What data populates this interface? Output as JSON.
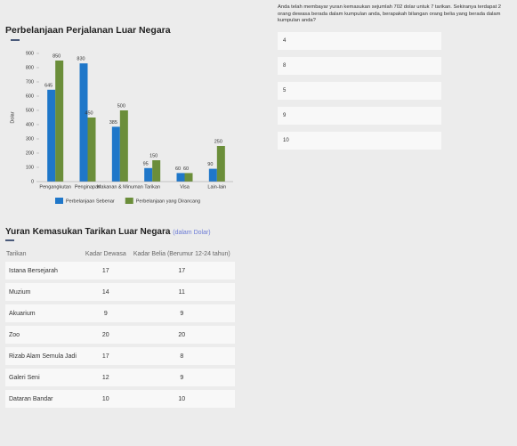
{
  "chart_data": {
    "type": "bar",
    "title": "Perbelanjaan Perjalanan Luar Negara",
    "y_label": "Dolar",
    "categories": [
      "Pengangkutan",
      "Penginapan",
      "Makanan & Minuman",
      "Tarikan",
      "Visa",
      "Lain-lain"
    ],
    "series": [
      {
        "name": "Perbelanjaan Sebenar",
        "color": "#1f77c9",
        "values": [
          645,
          830,
          385,
          95,
          60,
          90
        ]
      },
      {
        "name": "Perbelanjaan yang Dirancang",
        "color": "#6b8e3a",
        "values": [
          850,
          450,
          500,
          150,
          60,
          250
        ]
      }
    ],
    "ylim": [
      0,
      900
    ],
    "yticks": [
      0,
      100,
      200,
      300,
      400,
      500,
      600,
      700,
      800,
      900
    ],
    "grid": false,
    "legend": "bottom"
  },
  "table": {
    "title": "Yuran Kemasukan Tarikan Luar Negara",
    "subtitle": "(dalam Dolar)",
    "headers": [
      "Tarikan",
      "Kadar Dewasa",
      "Kadar Belia (Berumur 12-24 tahun)"
    ],
    "rows": [
      [
        "Istana Bersejarah",
        17,
        17
      ],
      [
        "Muzium",
        14,
        11
      ],
      [
        "Akuarium",
        9,
        9
      ],
      [
        "Zoo",
        20,
        20
      ],
      [
        "Rizab Alam Semula Jadi",
        17,
        8
      ],
      [
        "Galeri Seni",
        12,
        9
      ],
      [
        "Dataran Bandar",
        10,
        10
      ]
    ]
  },
  "question": {
    "text": "Anda telah membayar yuran kemasukan sejumlah 702 dolar untuk 7 tarikan. Sekiranya terdapat 2 orang dewasa berada dalam kumpulan anda, berapakah bilangan orang belia yang berada dalam kumpulan anda?",
    "options": [
      "4",
      "8",
      "5",
      "9",
      "10"
    ]
  }
}
